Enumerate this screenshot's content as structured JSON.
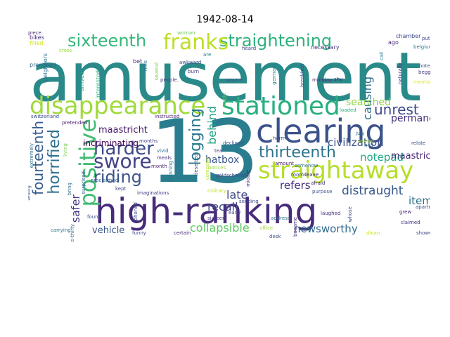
{
  "title": "1942-08-14",
  "words": [
    {
      "text": "amusement",
      "color": "#2a8a8a"
    },
    {
      "text": "13",
      "color": "#2a7d8e"
    },
    {
      "text": "high-ranking",
      "color": "#472c7a"
    },
    {
      "text": "clearing",
      "color": "#3b528b"
    },
    {
      "text": "straightaway",
      "color": "#b5de2b"
    },
    {
      "text": "disappearance",
      "color": "#a0da39"
    },
    {
      "text": "stationed",
      "color": "#29af7f"
    },
    {
      "text": "straightening",
      "color": "#2db27d"
    },
    {
      "text": "sixteenth",
      "color": "#35b779"
    },
    {
      "text": "franks",
      "color": "#bddf26"
    },
    {
      "text": "positive",
      "color": "#3fbc73"
    },
    {
      "text": "fourteenth",
      "color": "#365c8d"
    },
    {
      "text": "horrified",
      "color": "#2e6f8e"
    },
    {
      "text": "harder",
      "color": "#3e4a89"
    },
    {
      "text": "swore",
      "color": "#414487"
    },
    {
      "text": "riding",
      "color": "#3b528b"
    },
    {
      "text": "unrest",
      "color": "#3e4989"
    },
    {
      "text": "thirteenth",
      "color": "#2c728e"
    },
    {
      "text": "logging",
      "color": "#2a788e"
    },
    {
      "text": "behind",
      "color": "#1fa088"
    },
    {
      "text": "causing",
      "color": "#2e6e8e"
    },
    {
      "text": "civilization",
      "color": "#3c508b"
    },
    {
      "text": "notepad",
      "color": "#22a785"
    },
    {
      "text": "permanent",
      "color": "#46337e"
    },
    {
      "text": "searched",
      "color": "#8fd744"
    },
    {
      "text": "maastricht.",
      "color": "#482576"
    },
    {
      "text": "maastricht",
      "color": "#481a6c"
    },
    {
      "text": "incriminating",
      "color": "#440154"
    },
    {
      "text": "hatbox",
      "color": "#39568c"
    },
    {
      "text": "refers",
      "color": "#46307e"
    },
    {
      "text": "late",
      "color": "#3f4788"
    },
    {
      "text": "recall",
      "color": "#404688"
    },
    {
      "text": "distraught",
      "color": "#38598c"
    },
    {
      "text": "item",
      "color": "#2d708e"
    },
    {
      "text": "collapsible",
      "color": "#5ec962"
    },
    {
      "text": "newsworthy",
      "color": "#2f6c8e"
    },
    {
      "text": "vehicle",
      "color": "#39568c"
    },
    {
      "text": "safer",
      "color": "#443983"
    },
    {
      "text": "bikes",
      "color": "#472d7b"
    },
    {
      "text": "filled",
      "color": "#d2e21b"
    },
    {
      "text": "cross",
      "color": "#95d840"
    },
    {
      "text": "promised",
      "color": "#31668e"
    },
    {
      "text": "neighbors",
      "color": "#2c728e"
    },
    {
      "text": "arrived",
      "color": "#20a386"
    },
    {
      "text": "interested",
      "color": "#2db27d"
    },
    {
      "text": "bet",
      "color": "#472d7b"
    },
    {
      "text": "several",
      "color": "#7ad151"
    },
    {
      "text": "awkward",
      "color": "#3d4d8a"
    },
    {
      "text": "burn",
      "color": "#443a83"
    },
    {
      "text": "are",
      "color": "#26828e"
    },
    {
      "text": "woman",
      "color": "#6ece58"
    },
    {
      "text": "heard",
      "color": "#414487"
    },
    {
      "text": "necessary",
      "color": "#46327e"
    },
    {
      "text": "chamber",
      "color": "#3e4a89"
    },
    {
      "text": "ago",
      "color": "#482677"
    },
    {
      "text": "put",
      "color": "#3f4889"
    },
    {
      "text": "belgium",
      "color": "#2c738e"
    },
    {
      "text": "note",
      "color": "#3b528b"
    },
    {
      "text": "begged",
      "color": "#46337e"
    },
    {
      "text": "mention",
      "color": "#e5e419"
    },
    {
      "text": "monday",
      "color": "#482878"
    },
    {
      "text": "shy",
      "color": "#472e7c"
    },
    {
      "text": "germans",
      "color": "#25858e"
    },
    {
      "text": "breakfast",
      "color": "#3e4c8a"
    },
    {
      "text": "naturally",
      "color": "#3f4889"
    },
    {
      "text": "call",
      "color": "#2a788e"
    },
    {
      "text": "square",
      "color": "#3c4f8a"
    },
    {
      "text": "people.",
      "color": "#453882"
    },
    {
      "text": "nine",
      "color": "#2a768e"
    },
    {
      "text": "switzerland",
      "color": "#3d4e8a"
    },
    {
      "text": "instructed",
      "color": "#482374"
    },
    {
      "text": "pretended",
      "color": "#48186a"
    },
    {
      "text": "months",
      "color": "#404588"
    },
    {
      "text": "vivid",
      "color": "#2b748e"
    },
    {
      "text": "meals",
      "color": "#472f7d"
    },
    {
      "text": "month",
      "color": "#481f70"
    },
    {
      "text": "living",
      "color": "#7ad151"
    },
    {
      "text": "extremely",
      "color": "#2d708e"
    },
    {
      "text": "telling",
      "color": "#3b528b"
    },
    {
      "text": "bring",
      "color": "#2e6e8e"
    },
    {
      "text": "surprised",
      "color": "#34618d"
    },
    {
      "text": "kept",
      "color": "#404688"
    },
    {
      "text": "imaginations",
      "color": "#443983"
    },
    {
      "text": "military",
      "color": "#c2df23"
    },
    {
      "text": "deserted",
      "color": "#3c4f8a"
    },
    {
      "text": "planning",
      "color": "#2c738e"
    },
    {
      "text": "phoned",
      "color": "#3b528b"
    },
    {
      "text": "company",
      "color": "#b8de29"
    },
    {
      "text": "declined",
      "color": "#3b528b"
    },
    {
      "text": "tea",
      "color": "#472c7a"
    },
    {
      "text": "notices",
      "color": "#9bd93c"
    },
    {
      "text": "goldschmidt",
      "color": "#3e4989"
    },
    {
      "text": "middle",
      "color": "#482173"
    },
    {
      "text": "amount",
      "color": "#48186a"
    },
    {
      "text": "somehow",
      "color": "#2d718e"
    },
    {
      "text": "rooms",
      "color": "#3f4788"
    },
    {
      "text": "leave",
      "color": "#482475"
    },
    {
      "text": "afraid",
      "color": "#472d7b"
    },
    {
      "text": "purpose",
      "color": "#3b528b"
    },
    {
      "text": "harm",
      "color": "#414487"
    },
    {
      "text": "july",
      "color": "#2c728e"
    },
    {
      "text": "asking",
      "color": "#a8db34"
    },
    {
      "text": "half",
      "color": "#31688e"
    },
    {
      "text": "loaded",
      "color": "#2ab07f"
    },
    {
      "text": "grew",
      "color": "#482071"
    },
    {
      "text": "apartment",
      "color": "#3d4e8a"
    },
    {
      "text": "showed",
      "color": "#3f4889"
    },
    {
      "text": "claimed",
      "color": "#46327e"
    },
    {
      "text": "whose",
      "color": "#3e4a89"
    },
    {
      "text": "laughed",
      "color": "#472f7d"
    },
    {
      "text": "divan",
      "color": "#c8e020"
    },
    {
      "text": "address",
      "color": "#2c728e"
    },
    {
      "text": "desk",
      "color": "#3b528b"
    },
    {
      "text": "become",
      "color": "#46307e"
    },
    {
      "text": "office",
      "color": "#a5db36"
    },
    {
      "text": "sending",
      "color": "#3f4889"
    },
    {
      "text": "early",
      "color": "#414487"
    },
    {
      "text": "sixteen",
      "color": "#443983"
    },
    {
      "text": "certain",
      "color": "#482878"
    },
    {
      "text": "funny",
      "color": "#3e4a89"
    },
    {
      "text": "found",
      "color": "#3c4f8a"
    },
    {
      "text": "proclaimed",
      "color": "#34618d"
    },
    {
      "text": "nine-thirty",
      "color": "#2e6f8e"
    },
    {
      "text": "carrying",
      "color": "#2c738e"
    },
    {
      "text": "relate",
      "color": "#3b528b"
    },
    {
      "text": "single",
      "color": "#5ec962"
    },
    {
      "text": "piece",
      "color": "#482677"
    }
  ]
}
